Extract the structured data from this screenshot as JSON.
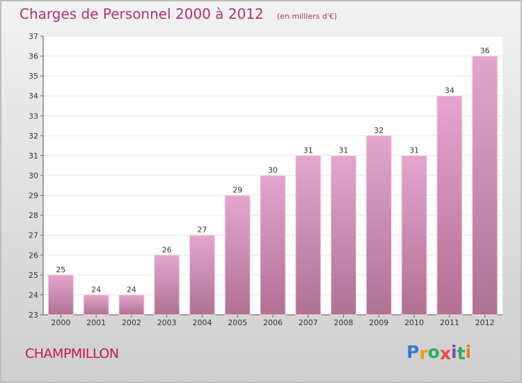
{
  "header": {
    "title": "Charges de Personnel 2000 à 2012",
    "subtitle": "(en milliers d'€)"
  },
  "commune": "CHAMPMILLON",
  "logo": {
    "letters": [
      "P",
      "r",
      "o",
      "x",
      "i",
      "t",
      "i"
    ],
    "colors": [
      "#2a7fd4",
      "#f39c12",
      "#27ae60",
      "#e74c3c",
      "#8e44ad",
      "#27ae60",
      "#e67e22"
    ]
  },
  "colors": {
    "bar_top": "#e4a6cd",
    "bar_bottom": "#b07193",
    "text": "#333333",
    "accent": "#b5336b"
  },
  "chart_data": {
    "type": "bar",
    "categories": [
      "2000",
      "2001",
      "2002",
      "2003",
      "2004",
      "2005",
      "2006",
      "2007",
      "2008",
      "2009",
      "2010",
      "2011",
      "2012"
    ],
    "values": [
      25,
      24,
      24,
      26,
      27,
      29,
      30,
      31,
      31,
      32,
      31,
      34,
      36
    ],
    "ylim": [
      23,
      37
    ],
    "yticks": [
      23,
      24,
      25,
      26,
      27,
      28,
      29,
      30,
      31,
      32,
      33,
      34,
      35,
      36,
      37
    ],
    "grid": true,
    "legend": "none"
  }
}
